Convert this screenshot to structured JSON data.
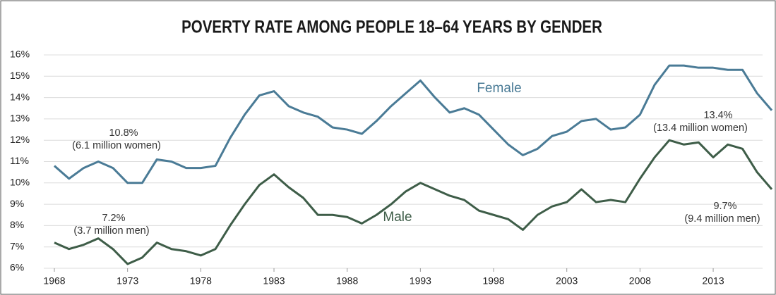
{
  "chart_data": {
    "type": "line",
    "title": "POVERTY RATE AMONG PEOPLE 18–64 YEARS BY GENDER",
    "x": [
      1968,
      1969,
      1970,
      1971,
      1972,
      1973,
      1974,
      1975,
      1976,
      1977,
      1978,
      1979,
      1980,
      1981,
      1982,
      1983,
      1984,
      1985,
      1986,
      1987,
      1988,
      1989,
      1990,
      1991,
      1992,
      1993,
      1994,
      1995,
      1996,
      1997,
      1998,
      1999,
      2000,
      2001,
      2002,
      2003,
      2004,
      2005,
      2006,
      2007,
      2008,
      2009,
      2010,
      2011,
      2012,
      2013,
      2014,
      2015,
      2016,
      2017
    ],
    "series": [
      {
        "name": "Female",
        "color": "#4a7b96",
        "values": [
          10.8,
          10.2,
          10.7,
          11.0,
          10.7,
          10.0,
          10.0,
          11.1,
          11.0,
          10.7,
          10.7,
          10.8,
          12.1,
          13.2,
          14.1,
          14.3,
          13.6,
          13.3,
          13.1,
          12.6,
          12.5,
          12.3,
          12.9,
          13.6,
          14.2,
          14.8,
          14.0,
          13.3,
          13.5,
          13.2,
          12.5,
          11.8,
          11.3,
          11.6,
          12.2,
          12.4,
          12.9,
          13.0,
          12.5,
          12.6,
          13.2,
          14.6,
          15.5,
          15.5,
          15.4,
          15.4,
          15.3,
          15.3,
          14.2,
          13.4
        ]
      },
      {
        "name": "Male",
        "color": "#3e5d48",
        "values": [
          7.2,
          6.9,
          7.1,
          7.4,
          6.9,
          6.2,
          6.5,
          7.2,
          6.9,
          6.8,
          6.6,
          6.9,
          8.0,
          9.0,
          9.9,
          10.4,
          9.8,
          9.3,
          8.5,
          8.5,
          8.4,
          8.1,
          8.5,
          9.0,
          9.6,
          10.0,
          9.7,
          9.4,
          9.2,
          8.7,
          8.5,
          8.3,
          7.8,
          8.5,
          8.9,
          9.1,
          9.7,
          9.1,
          9.2,
          9.1,
          10.2,
          11.2,
          12.0,
          11.8,
          11.9,
          11.2,
          11.8,
          11.6,
          10.5,
          9.7
        ]
      }
    ],
    "xlim": [
      1968,
      2017
    ],
    "xticks": [
      1968,
      1973,
      1978,
      1983,
      1988,
      1993,
      1998,
      2003,
      2008,
      2013
    ],
    "ylim": [
      6,
      16
    ],
    "yticks": [
      {
        "value": 6,
        "label": "6%"
      },
      {
        "value": 7,
        "label": "7%"
      },
      {
        "value": 8,
        "label": "8%"
      },
      {
        "value": 9,
        "label": "9%"
      },
      {
        "value": 10,
        "label": "10%"
      },
      {
        "value": 11,
        "label": "11%"
      },
      {
        "value": 12,
        "label": "12%"
      },
      {
        "value": 13,
        "label": "13%"
      },
      {
        "value": 14,
        "label": "14%"
      },
      {
        "value": 15,
        "label": "15%"
      },
      {
        "value": 16,
        "label": "16%"
      }
    ],
    "grid": true,
    "annotations": [
      "10.8%",
      "(6.1 million women)",
      "7.2%",
      "(3.7 million men)",
      "13.4%",
      "(13.4 million women)",
      "9.7%",
      "(9.4 million men)"
    ]
  }
}
